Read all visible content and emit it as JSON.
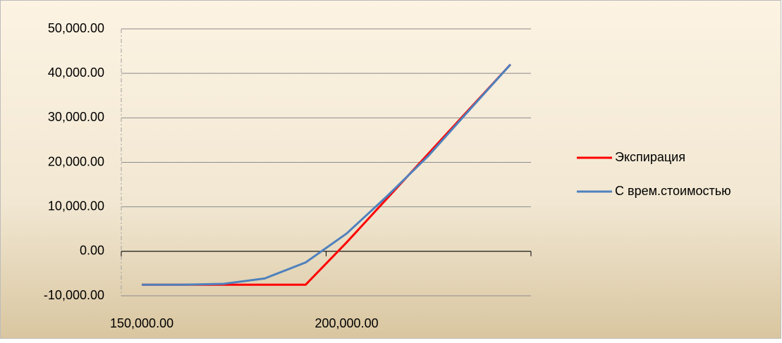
{
  "chart_data": {
    "type": "line",
    "categories": [
      "150,000.00",
      null,
      null,
      null,
      null,
      "200,000.00",
      null,
      null,
      null,
      null
    ],
    "series": [
      {
        "name": "Экспирация",
        "color": "#ff0000",
        "values": [
          -7500,
          -7500,
          -7500,
          -7500,
          -7500,
          2000,
          12000,
          22000,
          32000,
          42000
        ]
      },
      {
        "name": "С врем.стоимостью",
        "color": "#4f81bd",
        "values": [
          -7500,
          -7500,
          -7300,
          -6100,
          -2500,
          4000,
          12500,
          21500,
          31800,
          42000
        ]
      }
    ],
    "ylim": [
      -10000,
      50000
    ],
    "yticks": [
      {
        "value": -10000,
        "label": "-10,000.00"
      },
      {
        "value": 0,
        "label": "0.00"
      },
      {
        "value": 10000,
        "label": "10,000.00"
      },
      {
        "value": 20000,
        "label": "20,000.00"
      },
      {
        "value": 30000,
        "label": "30,000.00"
      },
      {
        "value": 40000,
        "label": "40,000.00"
      },
      {
        "value": 50000,
        "label": "50,000.00"
      }
    ],
    "grid": true,
    "legend": "right"
  }
}
